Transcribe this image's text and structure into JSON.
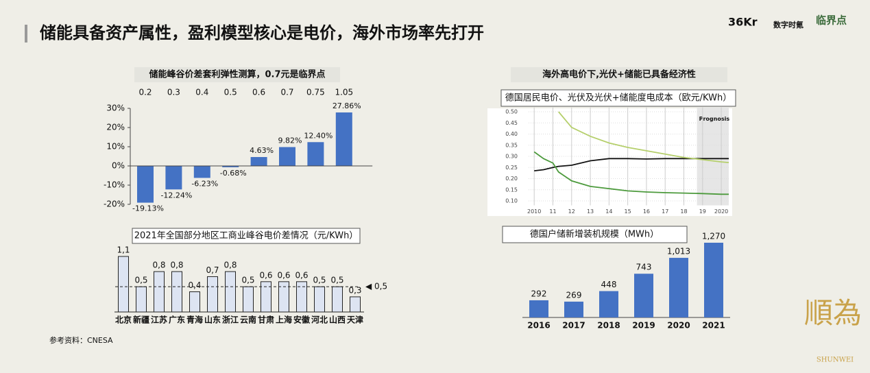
{
  "title": "储能具备资产属性，盈利模型核心是电价，海外市场率先打开",
  "right_heading": "海外高电价下,光伏+储能已具备经济性",
  "source": "参考资料：CNESA",
  "logos": [
    "36Kr",
    "数字时氪",
    "临界点",
    "順為",
    "SHUNWEI"
  ],
  "chart_data": [
    {
      "type": "bar",
      "title": "储能峰谷价差套利弹性测算，0.7元是临界点",
      "categories": [
        "0.2",
        "0.3",
        "0.4",
        "0.5",
        "0.6",
        "0.7",
        "0.75",
        "1.05"
      ],
      "values": [
        -19.13,
        -12.24,
        -6.23,
        -0.68,
        4.63,
        9.82,
        12.4,
        27.86
      ],
      "value_labels": [
        "-19.13%",
        "-12.24%",
        "-6.23%",
        "-0.68%",
        "4.63%",
        "9.82%",
        "12.40%",
        "27.86%"
      ],
      "color": "#4472c4",
      "ylim": [
        -20,
        30
      ],
      "yticks": [
        {
          "value": -20,
          "label": "-20%"
        },
        {
          "value": -10,
          "label": "-10%"
        },
        {
          "value": 0,
          "label": "0%"
        },
        {
          "value": 10,
          "label": "10%"
        },
        {
          "value": 20,
          "label": "20%"
        },
        {
          "value": 30,
          "label": "30%"
        }
      ]
    },
    {
      "type": "bar",
      "title": "2021年全国部分地区工商业峰谷电价差情况（元/KWh）",
      "categories": [
        "北京",
        "新疆",
        "江苏",
        "广东",
        "青海",
        "山东",
        "浙江",
        "云南",
        "甘肃",
        "上海",
        "安徽",
        "河北",
        "山西",
        "天津"
      ],
      "values": [
        1.1,
        0.5,
        0.8,
        0.8,
        0.4,
        0.7,
        0.8,
        0.5,
        0.6,
        0.6,
        0.6,
        0.5,
        0.5,
        0.3
      ],
      "value_labels": [
        "1,1",
        "0,5",
        "0,8",
        "0,8",
        "0,4",
        "0,7",
        "0,8",
        "0,5",
        "0,6",
        "0,6",
        "0,6",
        "0,5",
        "0,5",
        "0,3"
      ],
      "color": "#dde4f2",
      "reference_line": {
        "value": 0.5,
        "label": "◀ 0,5"
      }
    },
    {
      "type": "line",
      "title": "德国居民电价、光伏及光伏+储能度电成本（欧元/KWh）",
      "annotation": "Prognosis",
      "shaded_from": 2018.7,
      "x": [
        2010,
        2010.5,
        2011,
        2011.3,
        2012,
        2013,
        2014,
        2015,
        2016,
        2017,
        2018,
        2019,
        2020,
        2020.4
      ],
      "series": [
        {
          "color": "#111111",
          "values": [
            0.235,
            0.24,
            0.25,
            0.255,
            0.26,
            0.28,
            0.29,
            0.29,
            0.288,
            0.29,
            0.29,
            0.29,
            0.29,
            0.29
          ]
        },
        {
          "color": "#b5cf6b",
          "values": [
            null,
            null,
            null,
            0.5,
            0.43,
            0.39,
            0.36,
            0.34,
            0.325,
            0.31,
            0.295,
            0.285,
            0.275,
            0.272
          ]
        },
        {
          "color": "#4c9a3c",
          "values": [
            0.32,
            0.29,
            0.27,
            0.23,
            0.19,
            0.165,
            0.155,
            0.145,
            0.14,
            0.137,
            0.135,
            0.133,
            0.13,
            0.13
          ]
        }
      ],
      "xlim": [
        2009.7,
        2020.4
      ],
      "xticks": [
        {
          "value": 2010,
          "label": "2010"
        },
        {
          "value": 2011,
          "label": "11"
        },
        {
          "value": 2012,
          "label": "12"
        },
        {
          "value": 2013,
          "label": "13"
        },
        {
          "value": 2014,
          "label": "14"
        },
        {
          "value": 2015,
          "label": "15"
        },
        {
          "value": 2016,
          "label": "16"
        },
        {
          "value": 2017,
          "label": "17"
        },
        {
          "value": 2018,
          "label": "18"
        },
        {
          "value": 2019,
          "label": "19"
        },
        2020
      ],
      "ylim": [
        0.08,
        0.52
      ],
      "yticks": [
        {
          "value": 0.1,
          "label": "0.10"
        },
        0.15,
        {
          "value": 0.2,
          "label": "0.20"
        },
        0.25,
        {
          "value": 0.3,
          "label": "0.30"
        },
        0.35,
        {
          "value": 0.4,
          "label": "0.40"
        },
        0.45,
        {
          "value": 0.5,
          "label": "0.50"
        }
      ],
      "grid": true
    },
    {
      "type": "bar",
      "title": "德国户储新增装机规模（MWh）",
      "categories": [
        "2016",
        "2017",
        "2018",
        "2019",
        "2020",
        "2021"
      ],
      "values": [
        292,
        269,
        448,
        743,
        1013,
        1270
      ],
      "value_labels": [
        "292",
        "269",
        "448",
        "743",
        "1,013",
        "1,270"
      ],
      "color": "#4472c4"
    }
  ]
}
